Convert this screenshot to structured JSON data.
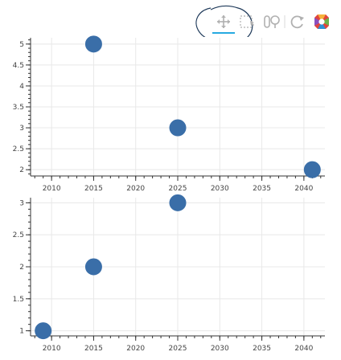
{
  "toolbar": {
    "tools": [
      "pan-tool",
      "box-zoom-tool",
      "wheel-zoom-tool",
      "reset-tool",
      "bokeh-logo"
    ],
    "active_tool": "pan-tool",
    "colors": {
      "icon": "#b0b0b0",
      "active_underline": "#26aae1",
      "annotation_ink": "#1f3a5a"
    }
  },
  "chart_data": [
    {
      "type": "scatter",
      "x": [
        2015,
        2025,
        2041
      ],
      "y": [
        5,
        3,
        2
      ],
      "xlim": [
        2007.5,
        2042.5
      ],
      "ylim": [
        1.85,
        5.15
      ],
      "x_ticks": [
        "2010",
        "2015",
        "2020",
        "2025",
        "2030",
        "2035",
        "2040"
      ],
      "y_ticks": [
        "2",
        "2.5",
        "3",
        "3.5",
        "4",
        "4.5",
        "5"
      ],
      "grid": true,
      "marker_color": "#3a6ea8"
    },
    {
      "type": "scatter",
      "x": [
        2009,
        2015,
        2025
      ],
      "y": [
        1,
        2,
        3
      ],
      "xlim": [
        2007.5,
        2042.5
      ],
      "ylim": [
        0.92,
        3.08
      ],
      "x_ticks": [
        "2010",
        "2015",
        "2020",
        "2025",
        "2030",
        "2035",
        "2040"
      ],
      "y_ticks": [
        "1",
        "1.5",
        "2",
        "2.5",
        "3"
      ],
      "grid": true,
      "marker_color": "#3a6ea8"
    }
  ]
}
